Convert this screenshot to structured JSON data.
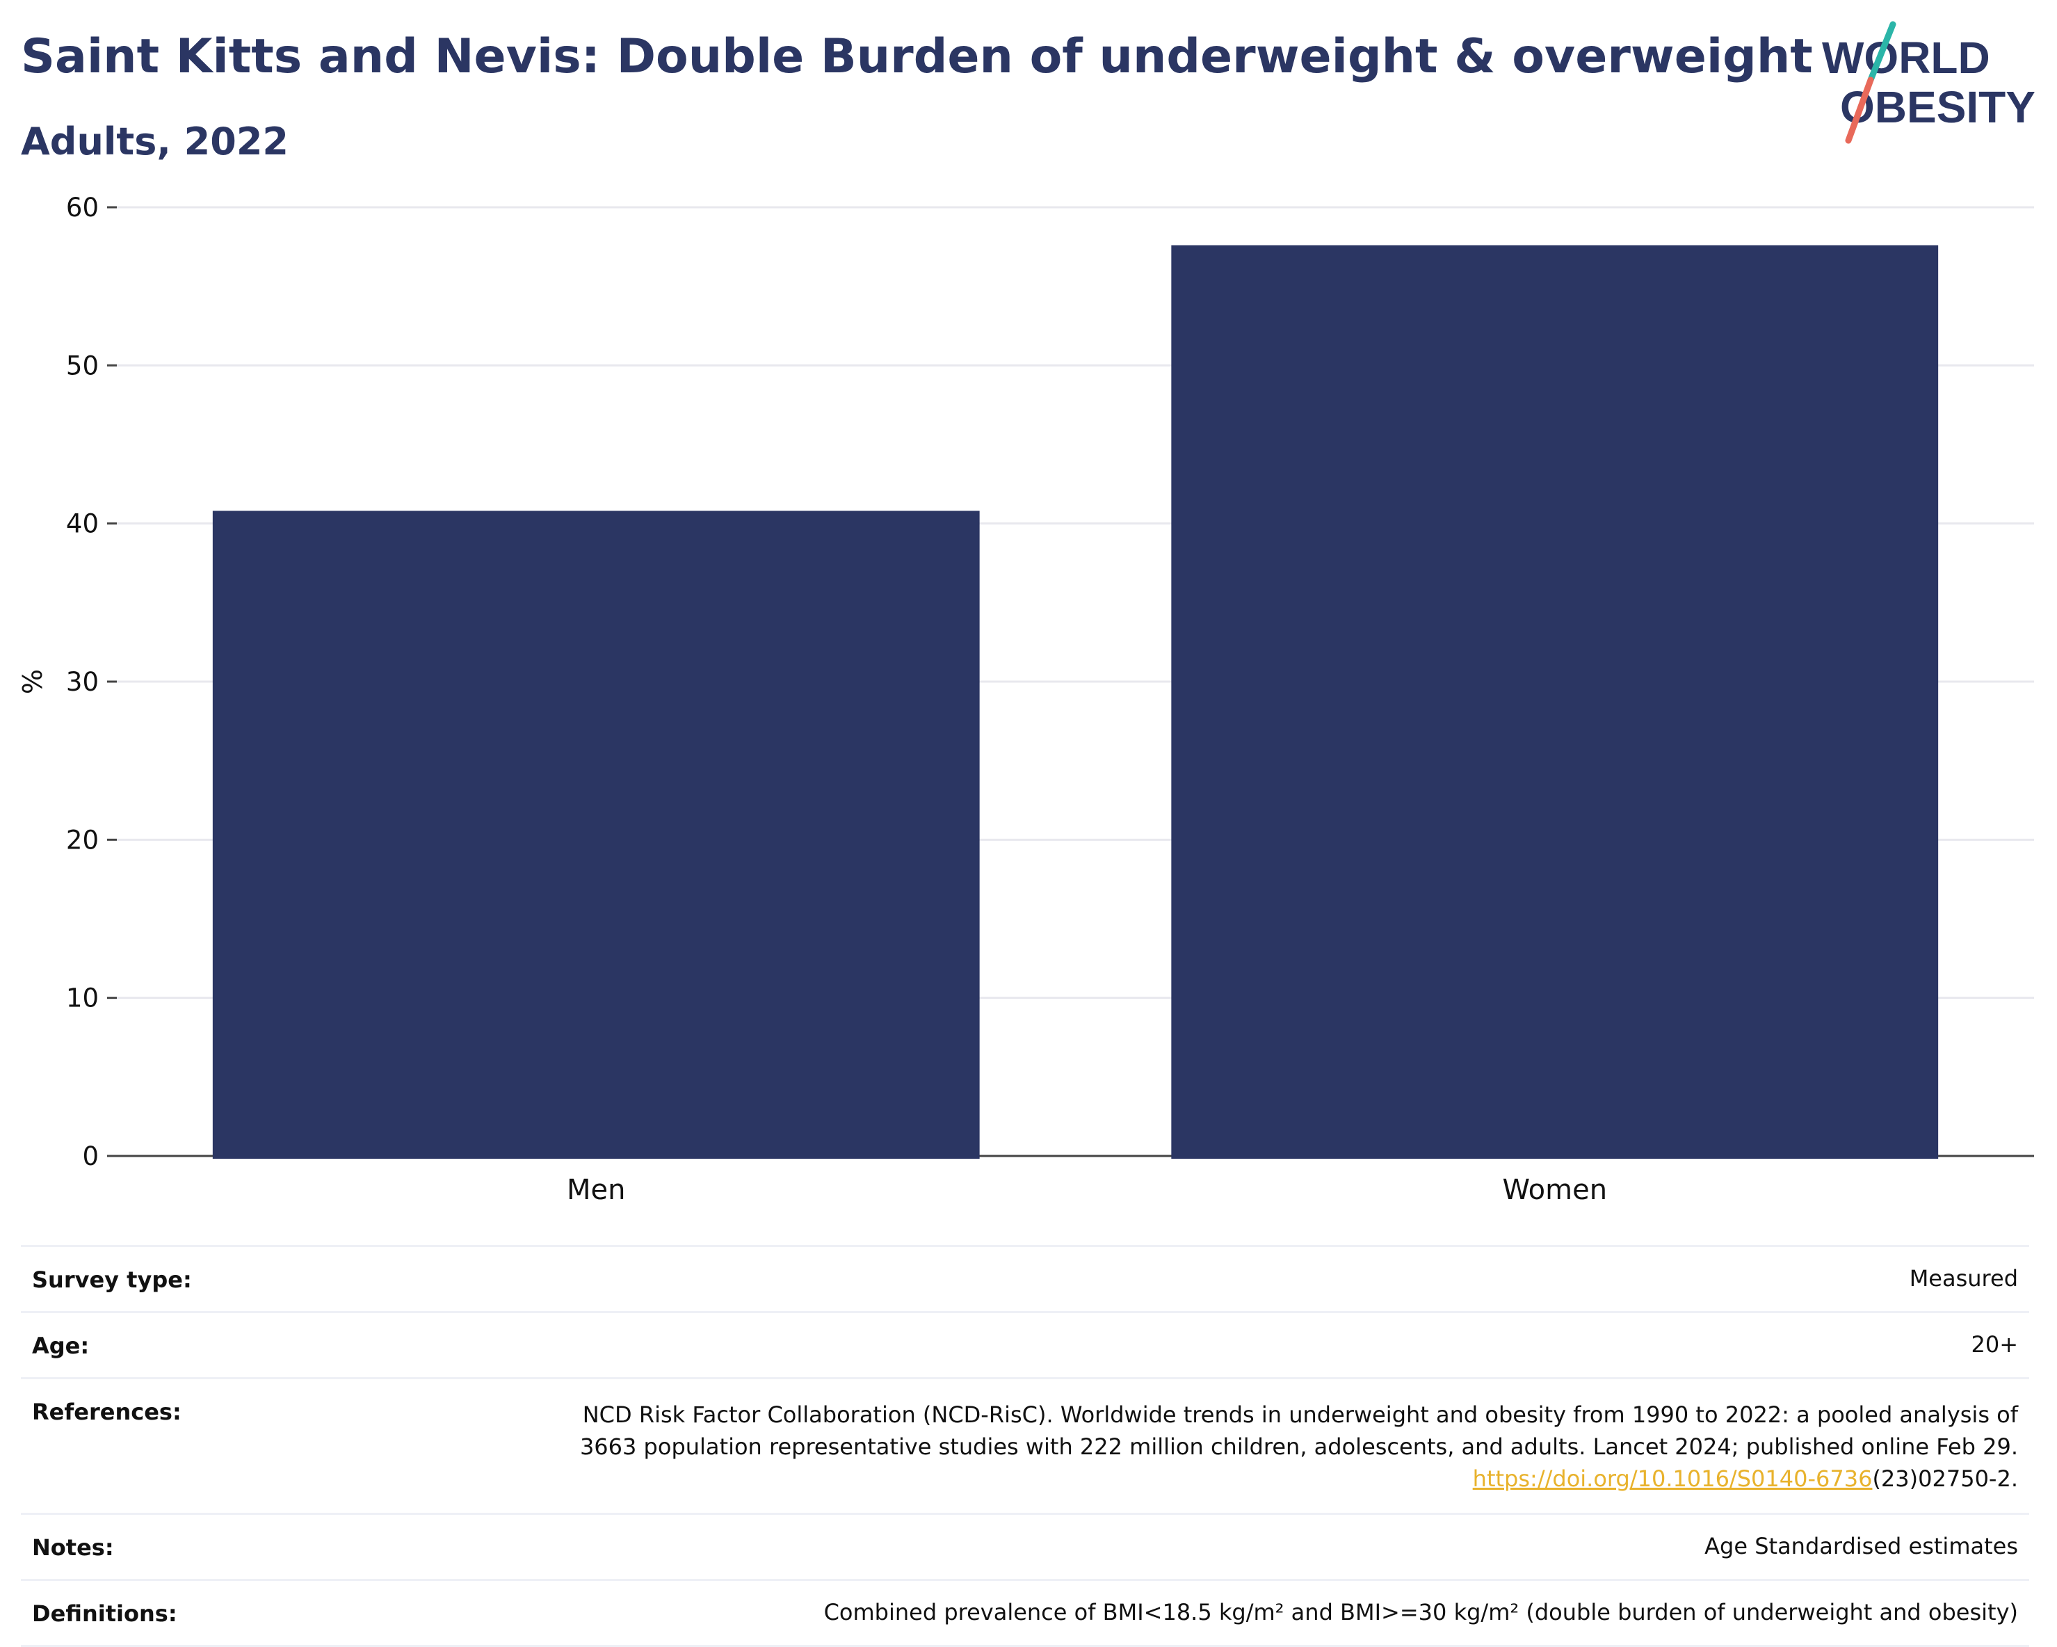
{
  "header": {
    "title": "Saint Kitts and Nevis: Double Burden of underweight & overweight",
    "subtitle": "Adults, 2022"
  },
  "logo": {
    "line1": "WORLD",
    "line2": "OBESITY",
    "text_color": "#2b3663",
    "slash_top_color": "#2bb5a8",
    "slash_bottom_color": "#e8695a"
  },
  "chart_data": {
    "type": "bar",
    "categories": [
      "Men",
      "Women"
    ],
    "values": [
      40.8,
      57.6
    ],
    "title": "",
    "xlabel": "",
    "ylabel": "%",
    "ylim": [
      0,
      60
    ],
    "yticks": [
      0,
      10,
      20,
      30,
      40,
      50,
      60
    ],
    "grid": true,
    "bar_color": "#2b3663"
  },
  "meta": {
    "survey_type": {
      "label": "Survey type:",
      "value": "Measured"
    },
    "age": {
      "label": "Age:",
      "value": "20+"
    },
    "references": {
      "label": "References:",
      "line1": "NCD Risk Factor Collaboration (NCD-RisC). Worldwide trends in underweight and obesity from 1990 to 2022: a pooled analysis of",
      "line2": "3663 population representative studies with 222 million children, adolescents, and adults. Lancet 2024; published online Feb 29.",
      "link_text": "https://doi.org/10.1016/S0140-6736",
      "link_suffix": "(23)02750-2."
    },
    "notes": {
      "label": "Notes:",
      "value": "Age Standardised estimates"
    },
    "definitions": {
      "label": "Definitions:",
      "value": "Combined prevalence of BMI<18.5 kg/m² and BMI>=30 kg/m² (double burden of underweight and obesity)"
    }
  }
}
